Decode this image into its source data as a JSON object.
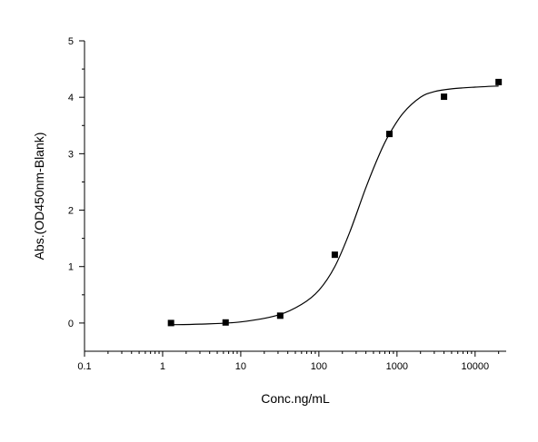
{
  "chart_data": {
    "type": "scatter",
    "title": "",
    "xlabel": "Conc.ng/mL",
    "ylabel": "Abs.(OD450nm-Blank)",
    "x_scale": "log",
    "xlim": [
      0.1,
      25000
    ],
    "ylim": [
      -0.5,
      5
    ],
    "x_ticks": [
      {
        "value": 0.1,
        "label": "0.1"
      },
      {
        "value": 1,
        "label": "1"
      },
      {
        "value": 10,
        "label": "10"
      },
      {
        "value": 100,
        "label": "100"
      },
      {
        "value": 1000,
        "label": "1000"
      },
      {
        "value": 10000,
        "label": "10000"
      }
    ],
    "y_ticks": [
      {
        "value": 0,
        "label": "0"
      },
      {
        "value": 1,
        "label": "1"
      },
      {
        "value": 2,
        "label": "2"
      },
      {
        "value": 3,
        "label": "3"
      },
      {
        "value": 4,
        "label": "4"
      },
      {
        "value": 5,
        "label": "5"
      }
    ],
    "grid": false,
    "legend": "none",
    "series": [
      {
        "type": "scatter",
        "marker": "square",
        "x": [
          1.28,
          6.4,
          32,
          160,
          800,
          4000,
          20000
        ],
        "y": [
          0.0,
          0.01,
          0.13,
          1.21,
          3.35,
          4.01,
          4.27
        ]
      },
      {
        "type": "line",
        "x": [
          1.28,
          3,
          10,
          30,
          60,
          100,
          160,
          250,
          400,
          600,
          800,
          1200,
          2000,
          3000,
          5000,
          10000,
          20000
        ],
        "y": [
          -0.03,
          -0.02,
          0.02,
          0.14,
          0.33,
          0.58,
          1.0,
          1.62,
          2.4,
          3.0,
          3.35,
          3.72,
          4.0,
          4.1,
          4.15,
          4.18,
          4.2
        ]
      }
    ],
    "colors": {
      "axis": "#000000",
      "marker": "#000000",
      "line": "#000000"
    }
  }
}
